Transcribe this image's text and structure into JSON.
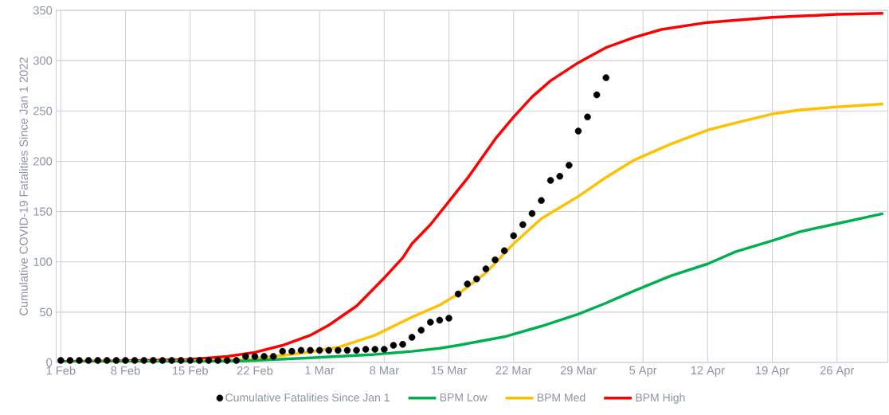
{
  "chart_data": {
    "type": "line",
    "ylabel": "Cumulative COVID-19 Fatalities Since Jan 1 2022",
    "xlim": [
      "2022-01-31T12:00",
      "2022-05-01T12:00"
    ],
    "xticks": [
      {
        "value": "2022-02-01",
        "label": "1 Feb"
      },
      {
        "value": "2022-02-08",
        "label": "8 Feb"
      },
      {
        "value": "2022-02-15",
        "label": "15 Feb"
      },
      {
        "value": "2022-02-22",
        "label": "22 Feb"
      },
      {
        "value": "2022-03-01",
        "label": "1 Mar"
      },
      {
        "value": "2022-03-08",
        "label": "8 Mar"
      },
      {
        "value": "2022-03-15",
        "label": "15 Mar"
      },
      {
        "value": "2022-03-22",
        "label": "22 Mar"
      },
      {
        "value": "2022-03-29",
        "label": "29 Mar"
      },
      {
        "value": "2022-04-05",
        "label": "5 Apr"
      },
      {
        "value": "2022-04-12",
        "label": "12 Apr"
      },
      {
        "value": "2022-04-19",
        "label": "19 Apr"
      },
      {
        "value": "2022-04-26",
        "label": "26 Apr"
      }
    ],
    "ylim": [
      0,
      350
    ],
    "yticks": [
      0,
      50,
      100,
      150,
      200,
      250,
      300,
      350
    ],
    "grid": true,
    "legend": "bottom",
    "series": [
      {
        "name": "Cumulative Fatalities Since Jan 1",
        "type": "scatter",
        "marker": "circle",
        "color": "#000000",
        "x": [
          "2022-02-01",
          "2022-02-02",
          "2022-02-03",
          "2022-02-04",
          "2022-02-05",
          "2022-02-06",
          "2022-02-07",
          "2022-02-08",
          "2022-02-09",
          "2022-02-10",
          "2022-02-11",
          "2022-02-12",
          "2022-02-13",
          "2022-02-14",
          "2022-02-15",
          "2022-02-16",
          "2022-02-17",
          "2022-02-18",
          "2022-02-19",
          "2022-02-20",
          "2022-02-21",
          "2022-02-22",
          "2022-02-23",
          "2022-02-24",
          "2022-02-25",
          "2022-02-26",
          "2022-02-27",
          "2022-02-28",
          "2022-03-01",
          "2022-03-02",
          "2022-03-03",
          "2022-03-04",
          "2022-03-05",
          "2022-03-06",
          "2022-03-07",
          "2022-03-08",
          "2022-03-09",
          "2022-03-10",
          "2022-03-11",
          "2022-03-12",
          "2022-03-13",
          "2022-03-14",
          "2022-03-15",
          "2022-03-16",
          "2022-03-17",
          "2022-03-18",
          "2022-03-19",
          "2022-03-20",
          "2022-03-21",
          "2022-03-22",
          "2022-03-23",
          "2022-03-24",
          "2022-03-25",
          "2022-03-26",
          "2022-03-27",
          "2022-03-28",
          "2022-03-29",
          "2022-03-30",
          "2022-03-31",
          "2022-04-01"
        ],
        "values": [
          2,
          2,
          2,
          2,
          2,
          2,
          2,
          2,
          2,
          2,
          2,
          2,
          2,
          2,
          2,
          2,
          2,
          2,
          2,
          2,
          6,
          6,
          6,
          6,
          11,
          11,
          12,
          12,
          12,
          12,
          12,
          12,
          12,
          13,
          13,
          13,
          17,
          18,
          25,
          32,
          40,
          42,
          44,
          68,
          78,
          83,
          93,
          102,
          111,
          126,
          137,
          148,
          161,
          181,
          185,
          196,
          230,
          244,
          266,
          283
        ]
      },
      {
        "name": "BPM Low",
        "color": "#00b050",
        "x": [
          "2022-02-01",
          "2022-02-15",
          "2022-02-21",
          "2022-02-28",
          "2022-03-07",
          "2022-03-11",
          "2022-03-14",
          "2022-03-16",
          "2022-03-21",
          "2022-03-25",
          "2022-03-29",
          "2022-04-01",
          "2022-04-04",
          "2022-04-08",
          "2022-04-12",
          "2022-04-15",
          "2022-04-19",
          "2022-04-22",
          "2022-04-26",
          "2022-05-01"
        ],
        "values": [
          0.2,
          0.7,
          1.5,
          4.5,
          8,
          11,
          14,
          17,
          25.5,
          36,
          48,
          59,
          71,
          86,
          98,
          110,
          121,
          130,
          138,
          148
        ]
      },
      {
        "name": "BPM Med",
        "color": "#ffc000",
        "x": [
          "2022-02-01",
          "2022-02-08",
          "2022-02-15",
          "2022-02-21",
          "2022-02-25",
          "2022-02-28",
          "2022-03-03",
          "2022-03-07",
          "2022-03-11",
          "2022-03-14",
          "2022-03-16",
          "2022-03-19",
          "2022-03-22",
          "2022-03-25",
          "2022-03-29",
          "2022-04-01",
          "2022-04-04",
          "2022-04-08",
          "2022-04-12",
          "2022-04-15",
          "2022-04-19",
          "2022-04-22",
          "2022-04-26",
          "2022-05-01"
        ],
        "values": [
          0.5,
          0.8,
          1.5,
          3,
          7,
          10.5,
          15,
          27,
          45,
          57,
          68,
          89,
          118,
          143,
          165,
          184,
          201,
          217,
          231,
          238,
          247,
          251,
          254,
          257
        ]
      },
      {
        "name": "BPM High",
        "color": "#ff0000",
        "x": [
          "2022-02-01",
          "2022-02-08",
          "2022-02-15",
          "2022-02-19",
          "2022-02-22",
          "2022-02-25",
          "2022-02-28",
          "2022-03-02",
          "2022-03-05",
          "2022-03-08",
          "2022-03-10",
          "2022-03-11",
          "2022-03-13",
          "2022-03-15",
          "2022-03-17",
          "2022-03-20",
          "2022-03-22",
          "2022-03-24",
          "2022-03-26",
          "2022-03-29",
          "2022-04-01",
          "2022-04-04",
          "2022-04-07",
          "2022-04-12",
          "2022-04-19",
          "2022-04-26",
          "2022-05-01"
        ],
        "values": [
          1,
          1.5,
          3,
          6,
          10,
          17,
          27,
          37,
          56,
          84,
          104,
          118,
          137,
          160,
          183,
          222,
          244,
          264,
          280,
          298,
          313,
          323,
          331,
          338,
          343,
          346,
          347
        ]
      }
    ]
  }
}
